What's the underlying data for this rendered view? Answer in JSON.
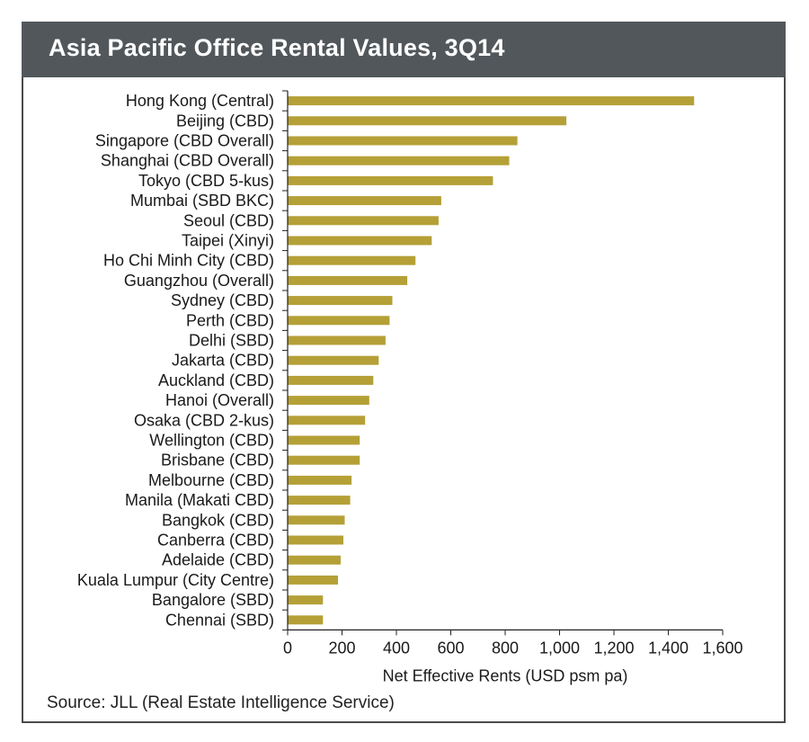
{
  "header": {
    "title": "Asia Pacific Office Rental Values, 3Q14"
  },
  "footer": {
    "source": "Source:  JLL (Real Estate Intelligence Service)"
  },
  "colors": {
    "bar": "#b5a037",
    "title_bg": "#51575b",
    "text": "#1a1a1a"
  },
  "chart_data": {
    "type": "bar",
    "orientation": "horizontal",
    "title": "Asia Pacific Office Rental Values, 3Q14",
    "xlabel": "Net Effective Rents (USD psm pa)",
    "ylabel": "",
    "xlim": [
      0,
      1600
    ],
    "xticks": [
      0,
      200,
      400,
      600,
      800,
      1000,
      1200,
      1400,
      1600
    ],
    "xtick_labels": [
      "0",
      "200",
      "400",
      "600",
      "800",
      "1,000",
      "1,200",
      "1,400",
      "1,600"
    ],
    "grid": false,
    "categories": [
      "Hong Kong (Central)",
      "Beijing (CBD)",
      "Singapore (CBD Overall)",
      "Shanghai (CBD Overall)",
      "Tokyo (CBD 5-kus)",
      "Mumbai (SBD BKC)",
      "Seoul (CBD)",
      "Taipei (Xinyi)",
      "Ho Chi Minh City (CBD)",
      "Guangzhou (Overall)",
      "Sydney (CBD)",
      "Perth (CBD)",
      "Delhi (SBD)",
      "Jakarta (CBD)",
      "Auckland (CBD)",
      "Hanoi (Overall)",
      "Osaka (CBD 2-kus)",
      "Wellington (CBD)",
      "Brisbane (CBD)",
      "Melbourne (CBD)",
      "Manila (Makati CBD)",
      "Bangkok (CBD)",
      "Canberra (CBD)",
      "Adelaide (CBD)",
      "Kuala Lumpur (City Centre)",
      "Bangalore (SBD)",
      "Chennai (SBD)"
    ],
    "values": [
      1495,
      1025,
      845,
      815,
      755,
      565,
      555,
      530,
      470,
      440,
      385,
      375,
      360,
      335,
      315,
      300,
      285,
      265,
      265,
      235,
      230,
      210,
      205,
      195,
      185,
      130,
      130
    ]
  }
}
